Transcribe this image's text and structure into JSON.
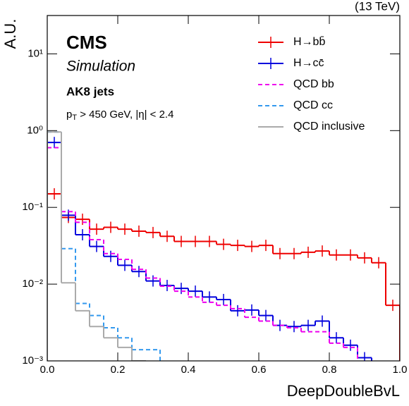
{
  "chart_data": {
    "type": "histogram",
    "energy_label": "(13 TeV)",
    "experiment": "CMS",
    "subtitle": "Simulation",
    "annotation": "AK8 jets",
    "cut_label": {
      "var": "p",
      "sub": "T",
      "rest": " > 450 GeV, |η| < 2.4"
    },
    "xlabel": "DeepDoubleBvL",
    "ylabel": "A.U.",
    "log_y": true,
    "legend": "upper right",
    "xlim": [
      0,
      1
    ],
    "ylim": [
      0.001,
      31.6
    ],
    "xticks": [
      {
        "value": 0,
        "label": "0.0"
      },
      0.2,
      0.4,
      0.6,
      0.8,
      {
        "value": 1,
        "label": "1.0"
      }
    ],
    "yticks": [
      {
        "value": 0.001,
        "label": "10⁻³"
      },
      {
        "value": 0.01,
        "label": "10⁻²"
      },
      {
        "value": 0.1,
        "label": "10⁻¹"
      },
      {
        "value": 1,
        "label": "10⁰"
      },
      {
        "value": 10,
        "label": "10¹"
      }
    ],
    "bins": [
      0,
      0.04,
      0.08,
      0.12,
      0.16,
      0.2,
      0.24,
      0.28,
      0.32,
      0.36,
      0.4,
      0.44,
      0.48,
      0.52,
      0.56,
      0.6,
      0.64,
      0.68,
      0.72,
      0.76,
      0.8,
      0.84,
      0.88,
      0.92,
      0.96,
      1.0
    ],
    "series": [
      {
        "name": "H→bb̄",
        "color": "#ee0000",
        "dashed": false,
        "markers": true,
        "values": [
          0.15,
          0.074,
          0.07,
          0.052,
          0.055,
          0.052,
          0.049,
          0.047,
          0.042,
          0.036,
          0.036,
          0.036,
          0.033,
          0.032,
          0.031,
          0.032,
          0.025,
          0.025,
          0.026,
          0.027,
          0.024,
          0.024,
          0.022,
          0.019,
          0.0053
        ]
      },
      {
        "name": "H→cc̄",
        "color": "#0000dd",
        "dashed": false,
        "markers": true,
        "values": [
          0.7,
          0.079,
          0.044,
          0.031,
          0.023,
          0.0176,
          0.0146,
          0.011,
          0.0096,
          0.0088,
          0.0081,
          0.0068,
          0.0063,
          0.0045,
          0.0046,
          0.0039,
          0.0029,
          0.0028,
          0.0029,
          0.0033,
          0.002,
          0.0016,
          0.0011,
          null,
          null
        ]
      },
      {
        "name": "QCD bb",
        "color": "#ee00ee",
        "dashed": true,
        "markers": false,
        "values": [
          0.6,
          0.088,
          0.064,
          0.038,
          0.025,
          0.021,
          0.0156,
          0.012,
          0.0094,
          0.0081,
          0.0068,
          0.0058,
          0.0053,
          0.0048,
          0.0037,
          0.0033,
          0.0029,
          0.0027,
          0.0024,
          0.0024,
          0.0017,
          0.0015,
          null,
          null,
          null
        ]
      },
      {
        "name": "QCD cc",
        "color": "#3399ee",
        "dashed": true,
        "markers": false,
        "values": [
          0.96,
          0.029,
          0.0056,
          0.0039,
          0.0027,
          0.002,
          0.0014,
          0.0014,
          null,
          null,
          null,
          null,
          null,
          null,
          null,
          null,
          null,
          null,
          null,
          null,
          null,
          null,
          null,
          null,
          null
        ]
      },
      {
        "name": "QCD inclusive",
        "color": "#aaaaaa",
        "dashed": false,
        "markers": false,
        "values": [
          0.96,
          0.0104,
          0.0045,
          0.0028,
          0.002,
          0.0015,
          0.001,
          null,
          null,
          null,
          null,
          null,
          null,
          null,
          null,
          null,
          null,
          null,
          null,
          null,
          null,
          null,
          null,
          null,
          null
        ]
      }
    ]
  }
}
